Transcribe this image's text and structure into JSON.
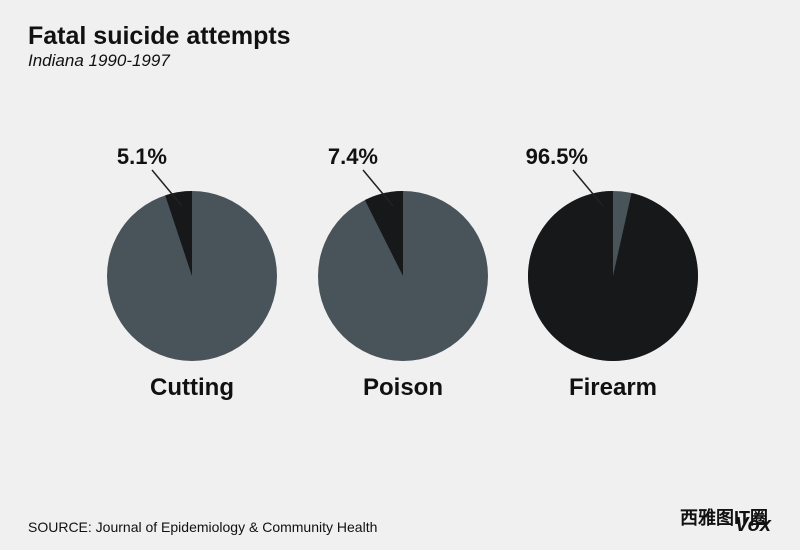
{
  "title": "Fatal suicide attempts",
  "subtitle": "Indiana 1990-1997",
  "source": "SOURCE: Journal of Epidemiology & Community Health",
  "watermark": "西雅图IT圈",
  "brand": "Vox",
  "chart_data": [
    {
      "type": "pie",
      "label": "Cutting",
      "values": [
        5.1
      ],
      "value_labels": [
        "5.1%"
      ],
      "color": "#16181a",
      "rest_color": "#48535a"
    },
    {
      "type": "pie",
      "label": "Poison",
      "values": [
        7.4
      ],
      "value_labels": [
        "7.4%"
      ],
      "color": "#16181a",
      "rest_color": "#48535a"
    },
    {
      "type": "pie",
      "label": "Firearm",
      "values": [
        96.5
      ],
      "value_labels": [
        "96.5%"
      ],
      "color": "#16181a",
      "rest_color": "#48535a"
    }
  ]
}
